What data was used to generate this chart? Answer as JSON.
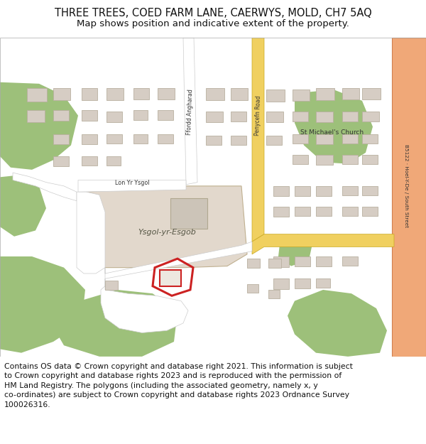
{
  "title_line1": "THREE TREES, COED FARM LANE, CAERWYS, MOLD, CH7 5AQ",
  "title_line2": "Map shows position and indicative extent of the property.",
  "footer": "Contains OS data © Crown copyright and database right 2021. This information is subject\nto Crown copyright and database rights 2023 and is reproduced with the permission of\nHM Land Registry. The polygons (including the associated geometry, namely x, y\nco-ordinates) are subject to Crown copyright and database rights 2023 Ordnance Survey\n100026316.",
  "map_bg": "#f2efe9",
  "road_yellow": "#f0d060",
  "road_white": "#ffffff",
  "green_color": "#9dc07a",
  "building_fill": "#d6cdc4",
  "building_stroke": "#b8b0a0",
  "school_fill": "#e2d8cc",
  "property_red": "#cc2222",
  "road_b_fill": "#f0a878",
  "road_b_stroke": "#d08050",
  "road_gray_stroke": "#cccccc",
  "text_dark": "#333333",
  "title_fontsize": 10.5,
  "subtitle_fontsize": 9.5,
  "footer_fontsize": 7.8
}
